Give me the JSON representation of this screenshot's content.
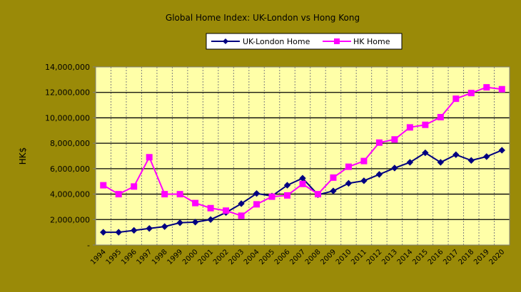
{
  "chart_data": {
    "type": "line",
    "title": "Global Home Index: UK-London vs Hong Kong",
    "xlabel": "",
    "ylabel": "HK$",
    "ylim": [
      0,
      14000000
    ],
    "ytick_labels": [
      "-",
      "2,000,000",
      "4,000,000",
      "6,000,000",
      "8,000,000",
      "10,000,000",
      "12,000,000",
      "14,000,000"
    ],
    "categories": [
      "1994",
      "1995",
      "1996",
      "1997",
      "1998",
      "1999",
      "2000",
      "2001",
      "2002",
      "2003",
      "2004",
      "2005",
      "2006",
      "2007",
      "2008",
      "2009",
      "2010",
      "2011",
      "2012",
      "2013",
      "2014",
      "2015",
      "2016",
      "2017",
      "2018",
      "2019",
      "2020"
    ],
    "grid": true,
    "legend_position": "top",
    "plot_background": "#ffffa8",
    "series": [
      {
        "name": "UK-London Home",
        "color": "#000080",
        "marker": "diamond",
        "values": [
          1000000,
          1000000,
          1150000,
          1300000,
          1450000,
          1750000,
          1800000,
          2000000,
          2550000,
          3250000,
          4050000,
          3850000,
          4700000,
          5250000,
          3950000,
          4250000,
          4850000,
          5050000,
          5550000,
          6050000,
          6500000,
          7250000,
          6500000,
          7100000,
          6650000,
          6950000,
          7450000
        ]
      },
      {
        "name": "HK Home",
        "color": "#ff00ff",
        "marker": "square",
        "values": [
          4700000,
          4000000,
          4600000,
          6900000,
          4000000,
          4000000,
          3300000,
          2900000,
          2700000,
          2300000,
          3200000,
          3800000,
          3900000,
          4800000,
          4000000,
          5300000,
          6150000,
          6600000,
          8050000,
          8300000,
          9250000,
          9450000,
          10050000,
          11500000,
          11950000,
          12400000,
          12250000
        ]
      }
    ]
  }
}
